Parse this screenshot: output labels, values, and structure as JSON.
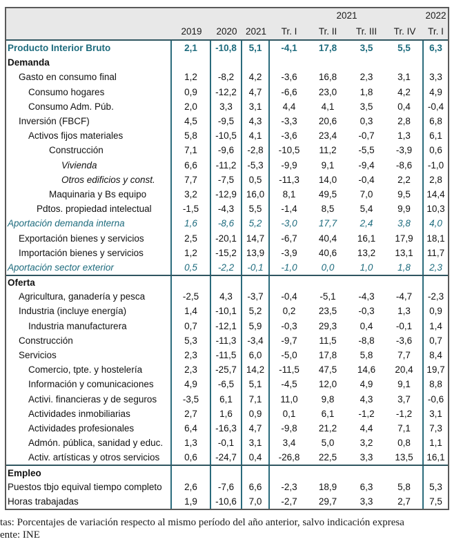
{
  "colors": {
    "teal_text": "#1D6B7D",
    "teal_line": "#2A6B7C",
    "header_bg": "#E8E8E8",
    "outer_border": "#595959",
    "section_line": "#2F5560"
  },
  "table": {
    "header": {
      "group_2021": "2021",
      "group_2022": "2022",
      "col_labels": [
        "2019",
        "2020",
        "2021",
        "Tr. I",
        "Tr. II",
        "Tr. III",
        "Tr. IV",
        "Tr. I"
      ]
    },
    "rows": [
      {
        "label": "Producto Interior Bruto",
        "style": "pib",
        "indent": 0,
        "separator_above": false,
        "values": [
          "2,1",
          "-10,8",
          "5,1",
          "-4,1",
          "17,8",
          "3,5",
          "5,5",
          "6,3"
        ]
      },
      {
        "label": "Demanda",
        "style": "section",
        "indent": 0,
        "separator_above": false,
        "values": []
      },
      {
        "label": "Gasto en consumo final",
        "style": "normal",
        "indent": 1,
        "separator_above": false,
        "values": [
          "1,2",
          "-8,2",
          "4,2",
          "-3,6",
          "16,8",
          "2,3",
          "3,1",
          "3,3"
        ]
      },
      {
        "label": "Consumo hogares",
        "style": "normal",
        "indent": 2,
        "separator_above": false,
        "values": [
          "0,9",
          "-12,2",
          "4,7",
          "-6,6",
          "23,0",
          "1,8",
          "4,2",
          "4,9"
        ]
      },
      {
        "label": "Consumo Adm. Púb.",
        "style": "normal",
        "indent": 2,
        "separator_above": false,
        "values": [
          "2,0",
          "3,3",
          "3,1",
          "4,4",
          "4,1",
          "3,5",
          "0,4",
          "-0,4"
        ]
      },
      {
        "label": "Inversión (FBCF)",
        "style": "normal",
        "indent": 1,
        "separator_above": false,
        "values": [
          "4,5",
          "-9,5",
          "4,3",
          "-3,3",
          "20,6",
          "0,3",
          "2,8",
          "6,8"
        ]
      },
      {
        "label": "Activos fijos materiales",
        "style": "normal",
        "indent": 2,
        "separator_above": false,
        "values": [
          "5,8",
          "-10,5",
          "4,1",
          "-3,6",
          "23,4",
          "-0,7",
          "1,3",
          "6,1"
        ]
      },
      {
        "label": "Construcción",
        "style": "normal",
        "indent": 4,
        "separator_above": false,
        "values": [
          "7,1",
          "-9,6",
          "-2,8",
          "-10,5",
          "11,2",
          "-5,5",
          "-3,9",
          "0,6"
        ]
      },
      {
        "label": "Vivienda",
        "style": "italic",
        "indent": 5,
        "separator_above": false,
        "values": [
          "6,6",
          "-11,2",
          "-5,3",
          "-9,9",
          "9,1",
          "-9,4",
          "-8,6",
          "-1,0"
        ]
      },
      {
        "label": "Otros edificios y const.",
        "style": "italic",
        "indent": 5,
        "separator_above": false,
        "values": [
          "7,7",
          "-7,5",
          "0,5",
          "-11,3",
          "14,0",
          "-0,4",
          "2,2",
          "2,8"
        ]
      },
      {
        "label": "Maquinaria y Bs equipo",
        "style": "normal",
        "indent": 4,
        "separator_above": false,
        "values": [
          "3,2",
          "-12,9",
          "16,0",
          "8,1",
          "49,5",
          "7,0",
          "9,5",
          "14,4"
        ]
      },
      {
        "label": "Pdtos. propiedad intelectual",
        "style": "normal",
        "indent": 3,
        "separator_above": false,
        "values": [
          "-1,5",
          "-4,3",
          "5,5",
          "-1,4",
          "8,5",
          "5,4",
          "9,9",
          "10,3"
        ]
      },
      {
        "label": "Aportación demanda interna",
        "style": "teal-italic",
        "indent": 0,
        "separator_above": false,
        "values": [
          "1,6",
          "-8,6",
          "5,2",
          "-3,0",
          "17,7",
          "2,4",
          "3,8",
          "4,0"
        ]
      },
      {
        "label": "Exportación bienes y servicios",
        "style": "normal",
        "indent": 1,
        "separator_above": false,
        "values": [
          "2,5",
          "-20,1",
          "14,7",
          "-6,7",
          "40,4",
          "16,1",
          "17,9",
          "18,1"
        ]
      },
      {
        "label": "Importación bienes y servicios",
        "style": "normal",
        "indent": 1,
        "separator_above": false,
        "values": [
          "1,2",
          "-15,2",
          "13,9",
          "-3,9",
          "40,6",
          "13,2",
          "13,1",
          "11,7"
        ]
      },
      {
        "label": "Aportación sector exterior",
        "style": "teal-italic",
        "indent": 0,
        "separator_above": false,
        "values": [
          "0,5",
          "-2,2",
          "-0,1",
          "-1,0",
          "0,0",
          "1,0",
          "1,8",
          "2,3"
        ]
      },
      {
        "label": "Oferta",
        "style": "section",
        "indent": 0,
        "separator_above": true,
        "values": []
      },
      {
        "label": "Agricultura, ganadería y pesca",
        "style": "normal",
        "indent": 1,
        "separator_above": false,
        "values": [
          "-2,5",
          "4,3",
          "-3,7",
          "-0,4",
          "-5,1",
          "-4,3",
          "-4,7",
          "-2,3"
        ]
      },
      {
        "label": "Industria (incluye energía)",
        "style": "normal",
        "indent": 1,
        "separator_above": false,
        "values": [
          "1,4",
          "-10,1",
          "5,2",
          "0,2",
          "23,5",
          "-0,3",
          "1,3",
          "0,9"
        ]
      },
      {
        "label": "Industria manufacturera",
        "style": "normal",
        "indent": 2,
        "separator_above": false,
        "values": [
          "0,7",
          "-12,1",
          "5,9",
          "-0,3",
          "29,3",
          "0,4",
          "-0,1",
          "1,4"
        ]
      },
      {
        "label": "Construcción",
        "style": "normal",
        "indent": 1,
        "separator_above": false,
        "values": [
          "5,3",
          "-11,3",
          "-3,4",
          "-9,7",
          "11,5",
          "-8,8",
          "-3,6",
          "0,7"
        ]
      },
      {
        "label": "Servicios",
        "style": "normal",
        "indent": 1,
        "separator_above": false,
        "values": [
          "2,3",
          "-11,5",
          "6,0",
          "-5,0",
          "17,8",
          "5,8",
          "7,7",
          "8,4"
        ]
      },
      {
        "label": "Comercio, tpte. y hostelería",
        "style": "normal",
        "indent": 2,
        "separator_above": false,
        "values": [
          "2,3",
          "-25,7",
          "14,2",
          "-11,5",
          "47,5",
          "14,6",
          "20,4",
          "19,7"
        ]
      },
      {
        "label": "Información y comunicaciones",
        "style": "normal",
        "indent": 2,
        "separator_above": false,
        "values": [
          "4,9",
          "-6,5",
          "5,1",
          "-4,5",
          "12,0",
          "4,9",
          "9,1",
          "8,8"
        ]
      },
      {
        "label": "Activi. financieras y de seguros",
        "style": "normal",
        "indent": 2,
        "separator_above": false,
        "values": [
          "-3,5",
          "6,1",
          "7,1",
          "11,0",
          "9,8",
          "4,3",
          "3,7",
          "-0,6"
        ]
      },
      {
        "label": "Actividades inmobiliarias",
        "style": "normal",
        "indent": 2,
        "separator_above": false,
        "values": [
          "2,7",
          "1,6",
          "0,9",
          "0,1",
          "6,1",
          "-1,2",
          "-1,2",
          "3,1"
        ]
      },
      {
        "label": "Actividades profesionales",
        "style": "normal",
        "indent": 2,
        "separator_above": false,
        "values": [
          "6,4",
          "-16,3",
          "4,7",
          "-9,8",
          "21,2",
          "4,4",
          "7,1",
          "7,3"
        ]
      },
      {
        "label": "Admón. pública, sanidad y educ.",
        "style": "normal",
        "indent": 2,
        "separator_above": false,
        "values": [
          "1,3",
          "-0,1",
          "3,1",
          "3,4",
          "5,0",
          "3,2",
          "0,8",
          "1,1"
        ]
      },
      {
        "label": "Activ. artísticas y otros servicios",
        "style": "normal",
        "indent": 2,
        "separator_above": false,
        "values": [
          "0,6",
          "-24,7",
          "0,4",
          "-26,8",
          "22,5",
          "3,3",
          "13,5",
          "16,1"
        ]
      },
      {
        "label": "Empleo",
        "style": "section",
        "indent": 0,
        "separator_above": true,
        "values": []
      },
      {
        "label": "Puestos tbjo equival tiempo completo",
        "style": "normal",
        "indent": 0,
        "separator_above": false,
        "values": [
          "2,6",
          "-7,6",
          "6,6",
          "-2,3",
          "18,9",
          "6,3",
          "5,8",
          "5,3"
        ]
      },
      {
        "label": "Horas trabajadas",
        "style": "normal",
        "indent": 0,
        "separator_above": false,
        "values": [
          "1,9",
          "-10,6",
          "7,0",
          "-2,7",
          "29,7",
          "3,3",
          "2,7",
          "7,5"
        ]
      }
    ]
  },
  "footer": {
    "line1": "tas: Porcentajes de variación respecto al mismo período del año anterior, salvo indicación expresa",
    "line2": "ente: INE"
  }
}
